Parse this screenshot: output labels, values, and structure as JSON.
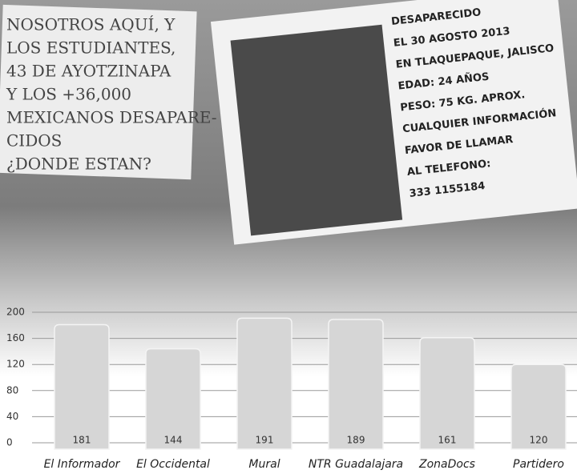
{
  "photo": {
    "handwritten_sign": [
      "NOSOTROS AQUÍ, Y",
      "LOS ESTUDIANTES,",
      "43 DE AYOTZINAPA",
      "Y LOS +36,000",
      "MEXICANOS DESAPARE-",
      "CIDOS",
      "¿DONDE ESTAN?"
    ],
    "poster": [
      "DESAPARECIDO",
      "EL 30 AGOSTO 2013",
      "EN TLAQUEPAQUE, JALISCO",
      "EDAD: 24 AÑOS",
      "PESO: 75 KG. APROX.",
      "CUALQUIER INFORMACIÓN",
      "FAVOR DE LLAMAR",
      "AL TELEFONO:",
      "333 1155184"
    ]
  },
  "chart_data": {
    "type": "bar",
    "categories": [
      "El Informador",
      "El Occidental",
      "Mural",
      "NTR Guadalajara",
      "ZonaDocs",
      "Partidero"
    ],
    "values": [
      181,
      144,
      191,
      189,
      161,
      120
    ],
    "color": "#d6d6d6",
    "ylim": [
      0,
      200
    ],
    "yticks": [
      0,
      40,
      80,
      120,
      160,
      200
    ],
    "grid": true
  }
}
